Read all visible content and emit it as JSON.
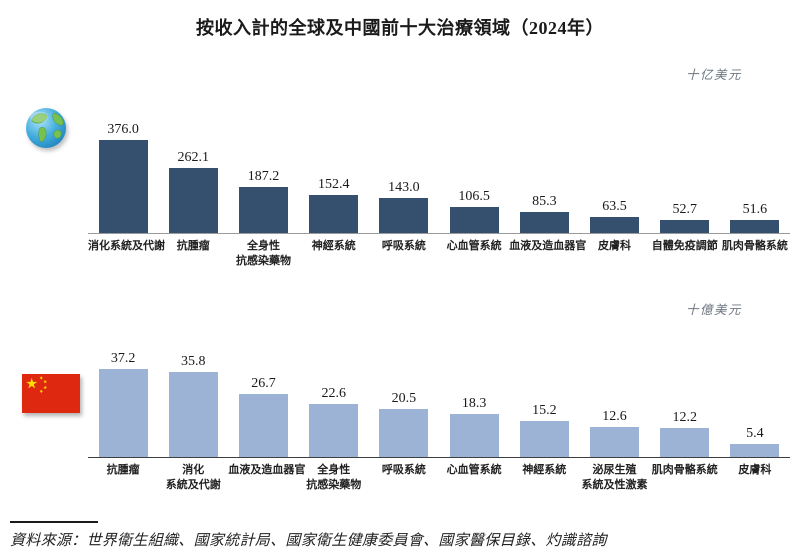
{
  "title": "按收入計的全球及中國前十大治療領域（2024年）",
  "source": "資料來源：世界衛生組織、國家統計局、國家衛生健康委員會、國家醫保目錄、灼識諮詢",
  "colors": {
    "global_bar": "#34506e",
    "china_bar": "#9db3d5",
    "unit_text": "#6e7781",
    "global_axis": "#9a9a9a",
    "china_axis": "#3e3e3e"
  },
  "icons": {
    "global": "globe-icon",
    "china": "china-flag-icon"
  },
  "chart_data": [
    {
      "type": "bar",
      "name": "global-top10-therapeutic-areas",
      "unit": "十亿美元",
      "icon": "globe-icon",
      "bar_color": "#34506e",
      "categories": [
        "消化系統及代謝",
        "抗腫瘤",
        "全身性\n抗感染藥物",
        "神經系統",
        "呼吸系統",
        "心血管系統",
        "血液及造血器官",
        "皮膚科",
        "自體免疫調節",
        "肌肉骨骼系統"
      ],
      "values": [
        376.0,
        262.1,
        187.2,
        152.4,
        143.0,
        106.5,
        85.3,
        63.5,
        52.7,
        51.6
      ],
      "value_labels": [
        "376.0",
        "262.1",
        "187.2",
        "152.4",
        "143.0",
        "106.5",
        "85.3",
        "63.5",
        "52.7",
        "51.6"
      ],
      "xlabel": "",
      "ylabel": "十亿美元",
      "ylim": [
        0,
        400
      ],
      "grid": false,
      "legend": "none",
      "data_labels": "above-bars"
    },
    {
      "type": "bar",
      "name": "china-top10-therapeutic-areas",
      "unit": "十億美元",
      "icon": "china-flag-icon",
      "bar_color": "#9db3d5",
      "categories": [
        "抗腫瘤",
        "消化\n系統及代謝",
        "血液及造血器官",
        "全身性\n抗感染藥物",
        "呼吸系統",
        "心血管系統",
        "神經系統",
        "泌尿生殖\n系統及性激素",
        "肌肉骨骼系統",
        "皮膚科"
      ],
      "values": [
        37.2,
        35.8,
        26.7,
        22.6,
        20.5,
        18.3,
        15.2,
        12.6,
        12.2,
        5.4
      ],
      "value_labels": [
        "37.2",
        "35.8",
        "26.7",
        "22.6",
        "20.5",
        "18.3",
        "15.2",
        "12.6",
        "12.2",
        "5.4"
      ],
      "xlabel": "",
      "ylabel": "十億美元",
      "ylim": [
        0,
        40
      ],
      "grid": false,
      "legend": "none",
      "data_labels": "above-bars"
    }
  ]
}
